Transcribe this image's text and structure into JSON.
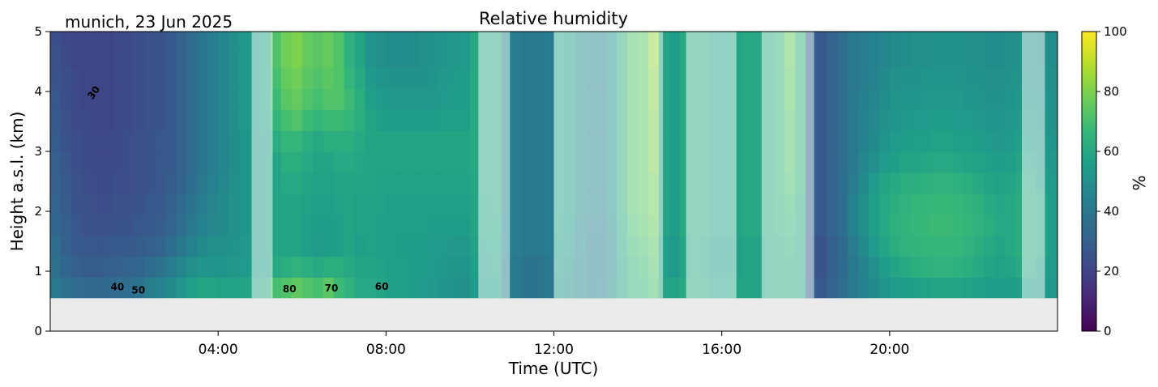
{
  "chart_data": {
    "type": "heatmap",
    "title": "Relative humidity",
    "location_date": "munich, 23 Jun 2025",
    "xlabel": "Time (UTC)",
    "ylabel": "Height a.s.l. (km)",
    "xlim": [
      0,
      24
    ],
    "ylim": [
      0,
      5
    ],
    "x_ticks": [
      4,
      8,
      12,
      16,
      20
    ],
    "x_tick_labels": [
      "04:00",
      "08:00",
      "12:00",
      "16:00",
      "20:00"
    ],
    "y_ticks": [
      0,
      1,
      2,
      3,
      4,
      5
    ],
    "y_tick_labels": [
      "0",
      "1",
      "2",
      "3",
      "4",
      "5"
    ],
    "colorbar": {
      "label": "%",
      "range": [
        0,
        100
      ],
      "ticks": [
        0,
        20,
        40,
        60,
        80,
        100
      ],
      "tick_labels": [
        "0",
        "20",
        "40",
        "60",
        "80",
        "100"
      ],
      "colormap": [
        "#440154",
        "#482777",
        "#3e4a89",
        "#31688e",
        "#26828e",
        "#1f9e89",
        "#35b779",
        "#6ece58",
        "#b5de2b",
        "#fde725"
      ]
    },
    "no_data_below_km": 0.55,
    "no_data_color": "#ebebeb",
    "x_columns_h": [
      0.125,
      0.375,
      0.625,
      0.875,
      1.125,
      1.375,
      1.625,
      1.875,
      2.125,
      2.375,
      2.625,
      2.875,
      3.125,
      3.375,
      3.625,
      3.875,
      4.125,
      4.375,
      4.625,
      4.875,
      5.125,
      5.375,
      5.625,
      5.875,
      6.125,
      6.375,
      6.625,
      6.875,
      7.125,
      7.375,
      7.625,
      7.875,
      8.125,
      8.375,
      8.625,
      8.875,
      9.125,
      9.375,
      9.625,
      9.875,
      10.125,
      10.375,
      10.625,
      10.875,
      11.125,
      11.375,
      11.625,
      11.875,
      12.125,
      12.375,
      12.625,
      12.875,
      13.125,
      13.375,
      13.625,
      13.875,
      14.125,
      14.375,
      14.625,
      14.875,
      15.125,
      15.375,
      15.625,
      15.875,
      16.125,
      16.375,
      16.625,
      16.875,
      17.125,
      17.375,
      17.625,
      17.875,
      18.125,
      18.375,
      18.625,
      18.875,
      19.125,
      19.375,
      19.625,
      19.875,
      20.125,
      20.375,
      20.625,
      20.875,
      21.125,
      21.375,
      21.625,
      21.875,
      22.125,
      22.375,
      22.625,
      22.875,
      23.125,
      23.375,
      23.625,
      23.875
    ],
    "y_rows_km": [
      0.725,
      1.075,
      1.425,
      1.775,
      2.125,
      2.475,
      2.825,
      3.175,
      3.525,
      3.875,
      4.225,
      4.575,
      4.925
    ],
    "values_percent": [
      [
        40,
        37,
        35,
        34,
        34,
        34,
        35,
        36,
        38,
        42,
        45,
        48,
        52,
        56,
        58,
        58,
        57,
        57,
        58,
        58,
        60,
        70,
        72,
        75,
        72,
        70,
        74,
        68,
        64,
        60,
        60,
        58,
        56,
        56,
        55,
        54,
        53,
        52,
        51,
        50,
        54,
        55,
        56,
        45,
        40,
        38,
        38,
        40,
        52,
        50,
        46,
        44,
        45,
        50,
        58,
        65,
        65,
        70,
        58,
        58,
        60,
        62,
        60,
        58,
        58,
        58,
        58,
        58,
        60,
        62,
        62,
        60,
        30,
        28,
        32,
        36,
        40,
        44,
        48,
        52,
        54,
        55,
        56,
        57,
        58,
        58,
        58,
        57,
        56,
        55,
        55,
        55,
        56,
        56,
        54,
        53
      ],
      [
        37,
        33,
        30,
        29,
        29,
        30,
        31,
        32,
        33,
        35,
        38,
        42,
        46,
        50,
        52,
        52,
        52,
        53,
        54,
        55,
        56,
        60,
        62,
        64,
        62,
        60,
        62,
        62,
        60,
        58,
        58,
        57,
        56,
        56,
        55,
        55,
        54,
        53,
        52,
        52,
        56,
        57,
        58,
        45,
        40,
        38,
        38,
        40,
        54,
        52,
        46,
        44,
        44,
        48,
        58,
        65,
        68,
        72,
        56,
        54,
        58,
        60,
        58,
        56,
        56,
        57,
        58,
        58,
        60,
        62,
        62,
        60,
        28,
        26,
        30,
        34,
        40,
        45,
        50,
        55,
        58,
        60,
        62,
        63,
        64,
        64,
        63,
        62,
        60,
        58,
        57,
        58,
        60,
        60,
        56,
        54
      ],
      [
        35,
        31,
        28,
        27,
        27,
        27,
        28,
        28,
        29,
        30,
        32,
        36,
        40,
        44,
        48,
        50,
        50,
        51,
        53,
        54,
        56,
        58,
        58,
        58,
        56,
        54,
        55,
        56,
        58,
        56,
        57,
        56,
        56,
        55,
        55,
        55,
        54,
        54,
        53,
        53,
        57,
        58,
        58,
        46,
        42,
        40,
        40,
        42,
        56,
        54,
        48,
        44,
        44,
        48,
        60,
        68,
        70,
        74,
        56,
        54,
        58,
        60,
        58,
        56,
        56,
        57,
        58,
        58,
        60,
        62,
        64,
        60,
        28,
        26,
        30,
        34,
        42,
        48,
        54,
        58,
        62,
        64,
        65,
        66,
        66,
        66,
        66,
        64,
        62,
        60,
        58,
        60,
        62,
        62,
        58,
        55
      ],
      [
        33,
        30,
        27,
        26,
        25,
        25,
        26,
        26,
        27,
        28,
        29,
        32,
        36,
        40,
        44,
        47,
        48,
        50,
        52,
        54,
        56,
        58,
        58,
        58,
        56,
        55,
        55,
        56,
        58,
        57,
        57,
        56,
        56,
        56,
        56,
        56,
        55,
        55,
        55,
        55,
        58,
        59,
        59,
        46,
        42,
        40,
        40,
        42,
        57,
        55,
        48,
        45,
        45,
        50,
        62,
        70,
        72,
        76,
        58,
        56,
        60,
        62,
        60,
        58,
        58,
        58,
        60,
        60,
        62,
        64,
        66,
        62,
        30,
        28,
        32,
        36,
        44,
        50,
        56,
        60,
        63,
        65,
        66,
        67,
        68,
        68,
        67,
        66,
        64,
        62,
        60,
        60,
        62,
        62,
        58,
        55
      ],
      [
        32,
        29,
        26,
        25,
        24,
        24,
        25,
        25,
        26,
        27,
        28,
        30,
        34,
        38,
        42,
        46,
        48,
        50,
        52,
        54,
        56,
        58,
        58,
        58,
        57,
        56,
        56,
        57,
        58,
        57,
        57,
        57,
        56,
        56,
        56,
        56,
        56,
        56,
        56,
        56,
        58,
        59,
        60,
        46,
        42,
        40,
        40,
        42,
        58,
        56,
        50,
        46,
        46,
        52,
        64,
        72,
        74,
        78,
        58,
        56,
        60,
        62,
        60,
        58,
        58,
        58,
        60,
        60,
        62,
        64,
        68,
        62,
        30,
        28,
        32,
        36,
        44,
        50,
        56,
        60,
        62,
        64,
        66,
        66,
        67,
        67,
        66,
        65,
        63,
        61,
        59,
        60,
        62,
        62,
        58,
        55
      ],
      [
        31,
        28,
        25,
        24,
        23,
        23,
        24,
        24,
        25,
        26,
        27,
        29,
        32,
        36,
        40,
        44,
        47,
        50,
        52,
        54,
        56,
        58,
        60,
        60,
        58,
        57,
        57,
        58,
        58,
        58,
        58,
        57,
        57,
        57,
        57,
        57,
        57,
        57,
        57,
        57,
        59,
        60,
        60,
        46,
        42,
        40,
        40,
        42,
        58,
        56,
        50,
        46,
        46,
        52,
        64,
        72,
        74,
        78,
        58,
        56,
        60,
        62,
        60,
        58,
        58,
        58,
        60,
        60,
        62,
        66,
        70,
        64,
        30,
        28,
        32,
        36,
        42,
        48,
        54,
        58,
        60,
        62,
        62,
        63,
        64,
        64,
        63,
        62,
        60,
        58,
        57,
        58,
        60,
        60,
        56,
        54
      ],
      [
        30,
        27,
        24,
        23,
        22,
        22,
        23,
        24,
        25,
        26,
        27,
        28,
        31,
        35,
        39,
        43,
        46,
        49,
        52,
        54,
        56,
        58,
        62,
        62,
        60,
        58,
        58,
        60,
        60,
        59,
        58,
        58,
        58,
        58,
        58,
        58,
        58,
        58,
        58,
        58,
        60,
        60,
        60,
        46,
        42,
        40,
        40,
        42,
        58,
        56,
        50,
        46,
        46,
        52,
        64,
        72,
        74,
        80,
        58,
        56,
        60,
        62,
        60,
        58,
        58,
        58,
        60,
        60,
        62,
        66,
        72,
        64,
        30,
        28,
        32,
        36,
        40,
        46,
        50,
        54,
        56,
        58,
        58,
        59,
        60,
        60,
        59,
        58,
        57,
        56,
        55,
        56,
        58,
        58,
        55,
        53
      ],
      [
        29,
        26,
        24,
        23,
        22,
        22,
        23,
        24,
        25,
        26,
        27,
        28,
        31,
        35,
        39,
        43,
        46,
        49,
        52,
        54,
        56,
        62,
        66,
        66,
        62,
        60,
        62,
        62,
        62,
        60,
        58,
        58,
        58,
        58,
        58,
        58,
        58,
        58,
        58,
        58,
        60,
        60,
        60,
        46,
        42,
        40,
        40,
        42,
        58,
        56,
        50,
        46,
        46,
        52,
        64,
        72,
        74,
        80,
        58,
        56,
        60,
        62,
        60,
        58,
        58,
        58,
        60,
        60,
        62,
        66,
        72,
        64,
        30,
        28,
        32,
        36,
        40,
        44,
        48,
        52,
        54,
        55,
        56,
        56,
        57,
        57,
        56,
        56,
        55,
        54,
        53,
        54,
        56,
        56,
        54,
        52
      ],
      [
        28,
        25,
        23,
        22,
        21,
        21,
        22,
        23,
        24,
        25,
        26,
        28,
        31,
        35,
        39,
        43,
        46,
        50,
        53,
        55,
        58,
        66,
        70,
        72,
        68,
        66,
        68,
        68,
        66,
        62,
        58,
        56,
        55,
        55,
        55,
        55,
        55,
        56,
        56,
        56,
        60,
        60,
        60,
        46,
        42,
        40,
        40,
        42,
        58,
        56,
        50,
        46,
        46,
        52,
        64,
        72,
        74,
        80,
        58,
        56,
        60,
        62,
        60,
        58,
        58,
        58,
        60,
        60,
        62,
        66,
        72,
        64,
        30,
        28,
        32,
        36,
        40,
        44,
        47,
        50,
        52,
        53,
        54,
        54,
        55,
        55,
        54,
        54,
        53,
        52,
        52,
        53,
        54,
        54,
        53,
        51
      ],
      [
        27,
        24,
        22,
        21,
        21,
        21,
        22,
        23,
        24,
        25,
        26,
        28,
        31,
        35,
        39,
        43,
        46,
        50,
        53,
        55,
        58,
        68,
        74,
        76,
        72,
        70,
        72,
        72,
        68,
        62,
        56,
        54,
        53,
        53,
        53,
        53,
        53,
        54,
        55,
        55,
        60,
        60,
        60,
        46,
        42,
        40,
        40,
        42,
        58,
        56,
        50,
        46,
        46,
        52,
        64,
        72,
        74,
        82,
        58,
        56,
        60,
        62,
        60,
        58,
        58,
        58,
        60,
        60,
        62,
        66,
        74,
        64,
        30,
        28,
        32,
        36,
        40,
        43,
        46,
        49,
        51,
        52,
        52,
        53,
        53,
        53,
        53,
        52,
        52,
        51,
        51,
        52,
        53,
        53,
        52,
        51
      ],
      [
        26,
        24,
        22,
        21,
        21,
        21,
        22,
        23,
        24,
        25,
        26,
        28,
        31,
        35,
        39,
        43,
        46,
        50,
        53,
        55,
        58,
        70,
        76,
        78,
        74,
        72,
        74,
        72,
        66,
        60,
        54,
        52,
        51,
        51,
        51,
        51,
        52,
        53,
        54,
        55,
        60,
        60,
        60,
        46,
        42,
        40,
        40,
        42,
        58,
        56,
        50,
        46,
        46,
        52,
        64,
        72,
        74,
        82,
        58,
        56,
        60,
        62,
        60,
        58,
        58,
        58,
        60,
        60,
        62,
        66,
        74,
        64,
        30,
        28,
        32,
        36,
        40,
        42,
        45,
        48,
        50,
        51,
        51,
        52,
        52,
        52,
        52,
        51,
        51,
        50,
        50,
        51,
        52,
        52,
        51,
        50
      ],
      [
        25,
        23,
        21,
        21,
        21,
        21,
        22,
        23,
        24,
        25,
        26,
        28,
        31,
        35,
        39,
        43,
        46,
        50,
        53,
        55,
        58,
        72,
        78,
        80,
        76,
        74,
        76,
        72,
        64,
        58,
        52,
        50,
        49,
        49,
        49,
        50,
        51,
        52,
        53,
        54,
        60,
        60,
        60,
        46,
        42,
        40,
        40,
        42,
        58,
        56,
        50,
        46,
        46,
        52,
        64,
        72,
        74,
        84,
        58,
        56,
        60,
        62,
        60,
        58,
        58,
        58,
        60,
        60,
        62,
        66,
        76,
        64,
        30,
        28,
        32,
        36,
        40,
        42,
        44,
        46,
        48,
        49,
        50,
        50,
        51,
        51,
        51,
        50,
        50,
        49,
        49,
        50,
        51,
        51,
        50,
        49
      ],
      [
        24,
        22,
        21,
        21,
        21,
        21,
        22,
        23,
        24,
        25,
        26,
        28,
        31,
        35,
        39,
        43,
        46,
        50,
        53,
        55,
        58,
        72,
        78,
        80,
        76,
        74,
        76,
        72,
        64,
        58,
        52,
        50,
        49,
        49,
        49,
        50,
        51,
        52,
        53,
        54,
        60,
        60,
        60,
        46,
        42,
        40,
        40,
        42,
        58,
        56,
        50,
        46,
        46,
        52,
        64,
        72,
        74,
        84,
        58,
        56,
        60,
        62,
        60,
        58,
        58,
        58,
        60,
        60,
        62,
        66,
        76,
        64,
        30,
        28,
        32,
        36,
        40,
        42,
        44,
        46,
        48,
        49,
        50,
        50,
        51,
        51,
        51,
        50,
        50,
        49,
        49,
        50,
        51,
        51,
        50,
        49
      ]
    ],
    "masked_time_ranges_h": [
      [
        4.8,
        5.3
      ],
      [
        10.2,
        10.95
      ],
      [
        12.0,
        14.6
      ],
      [
        15.15,
        16.35
      ],
      [
        16.95,
        18.2
      ],
      [
        23.15,
        23.7
      ]
    ],
    "contour_labels": [
      {
        "text": "30",
        "x": 1.1,
        "y": 3.95,
        "angle": -55
      },
      {
        "text": "40",
        "x": 1.6,
        "y": 0.68,
        "angle": 0
      },
      {
        "text": "50",
        "x": 2.1,
        "y": 0.63,
        "angle": 0
      },
      {
        "text": "80",
        "x": 5.7,
        "y": 0.65,
        "angle": 0
      },
      {
        "text": "70",
        "x": 6.7,
        "y": 0.66,
        "angle": 0
      },
      {
        "text": "60",
        "x": 7.9,
        "y": 0.69,
        "angle": 0
      }
    ]
  }
}
